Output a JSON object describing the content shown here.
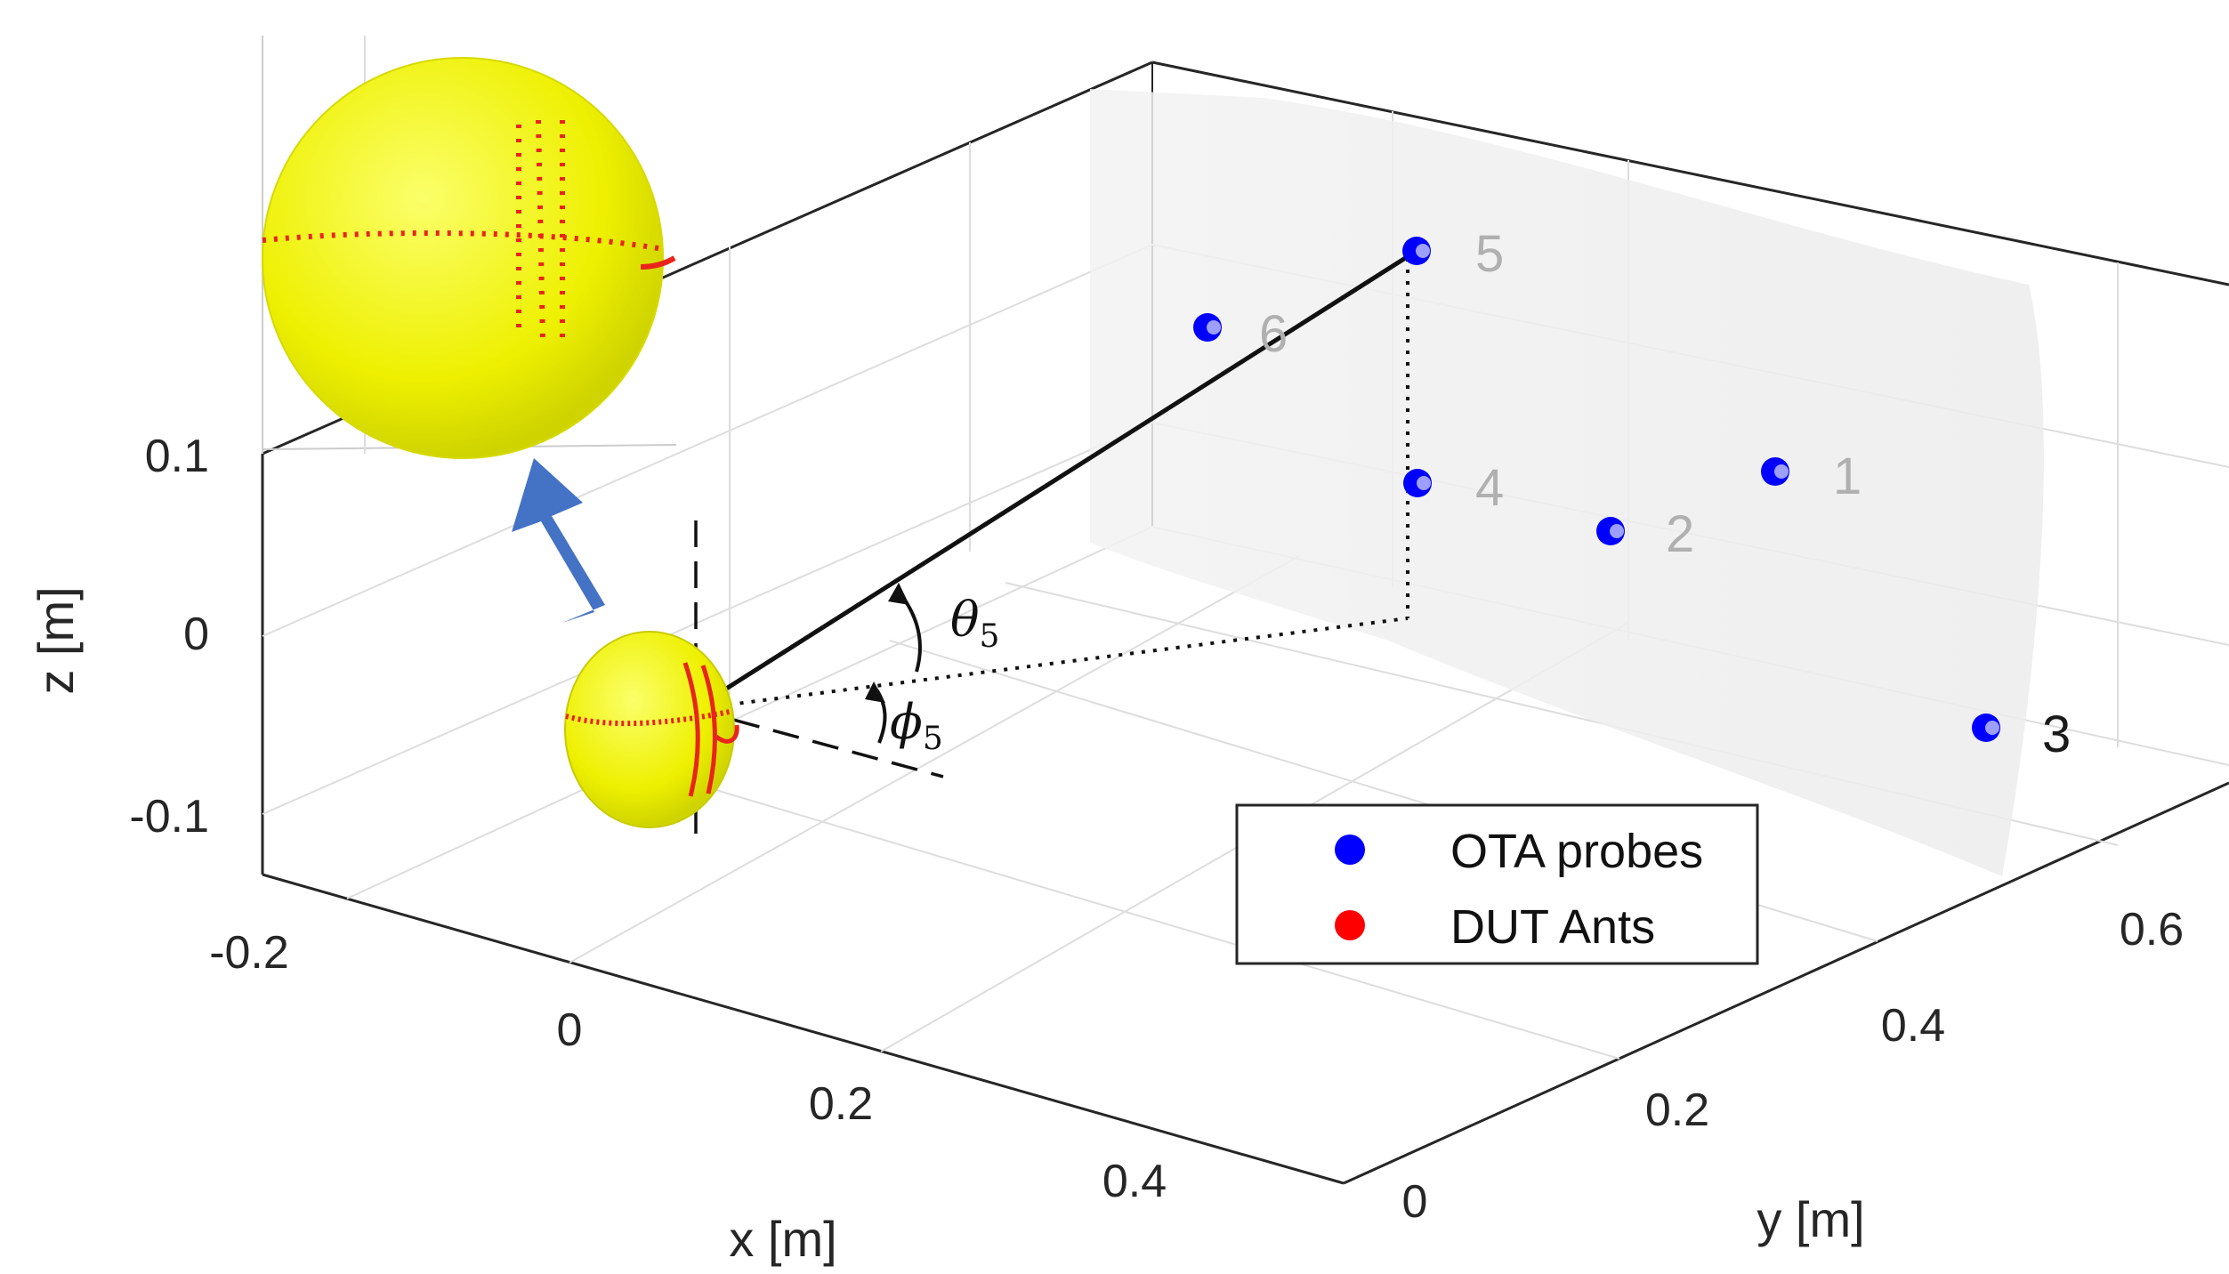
{
  "chart_data": {
    "type": "scatter",
    "view": "3d",
    "title": "",
    "xlabel": "x [m]",
    "ylabel": "y [m]",
    "zlabel": "z [m]",
    "xlim": [
      -0.2,
      0.45
    ],
    "ylim": [
      0,
      0.7
    ],
    "zlim": [
      -0.12,
      0.1
    ],
    "grid": true,
    "x_ticks": [
      "-0.2",
      "0",
      "0.2",
      "0.4"
    ],
    "y_ticks": [
      "0",
      "0.2",
      "0.4",
      "0.6"
    ],
    "z_ticks": [
      "0.1",
      "0",
      "-0.1"
    ],
    "series": [
      {
        "name": "OTA probes",
        "color": "#0000ff",
        "points": [
          {
            "label": "1"
          },
          {
            "label": "2"
          },
          {
            "label": "3"
          },
          {
            "label": "4"
          },
          {
            "label": "5"
          },
          {
            "label": "6"
          }
        ]
      },
      {
        "name": "DUT Ants",
        "color": "#ff0000"
      }
    ],
    "angle_labels": {
      "theta": {
        "symbol": "θ",
        "sub": "5"
      },
      "phi": {
        "symbol": "ϕ",
        "sub": "5"
      }
    },
    "legend_position": "bottom-right",
    "inset": {
      "description_icon": "zoom-arrow-icon",
      "sphere_color": "#f0f000"
    }
  }
}
